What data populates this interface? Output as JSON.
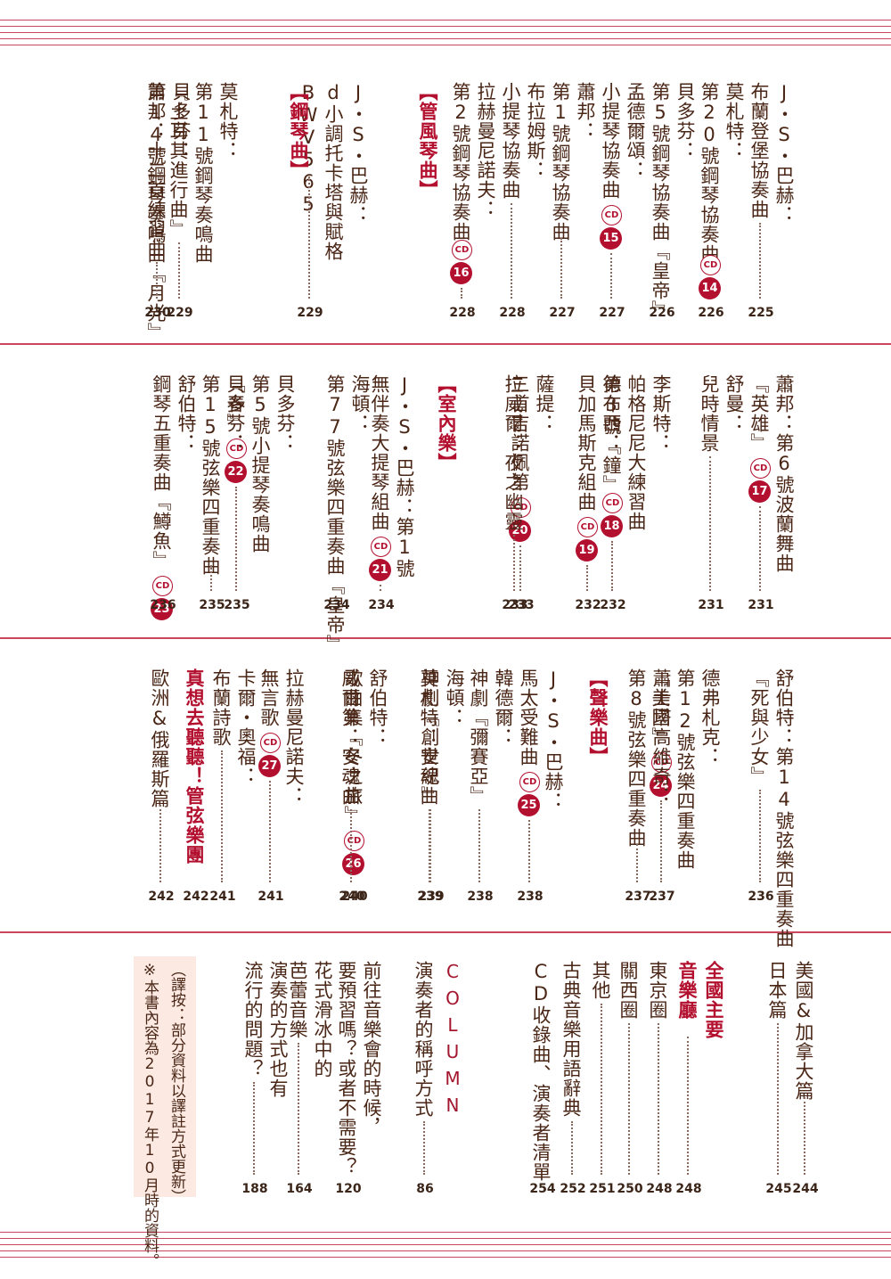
{
  "sections": [
    {
      "id": "s1",
      "columns": [
        {
          "lines": [
            "J・S・巴赫：",
            "布蘭登堡協奏曲"
          ],
          "page": "225"
        },
        {
          "lines": [
            "莫札特：",
            "第20號鋼琴協奏曲"
          ],
          "cd": "14",
          "page": "226"
        },
        {
          "lines": [
            "貝多芬：",
            "第5號鋼琴協奏曲『皇帝』"
          ],
          "page": "226"
        },
        {
          "lines": [
            "孟德爾頌：",
            "小提琴協奏曲"
          ],
          "cd": "15",
          "page": "227"
        },
        {
          "lines": [
            "蕭邦：",
            "第1號鋼琴協奏曲"
          ],
          "page": "227"
        },
        {
          "lines": [
            "布拉姆斯：",
            "小提琴協奏曲"
          ],
          "page": "228"
        },
        {
          "lines": [
            "拉赫曼尼諾夫：",
            "第2號鋼琴協奏曲"
          ],
          "cd": "16",
          "page": "228"
        },
        {
          "heading": "【管風琴曲】"
        },
        {
          "lines": [
            "J・S・巴赫：",
            "d小調托卡塔與賦格",
            "BWV565"
          ],
          "page": "229"
        },
        {
          "heading": "【鋼琴曲】"
        },
        {
          "lines": [
            "莫札特：",
            "第11號鋼琴奏鳴曲",
            "『土耳其進行曲』"
          ],
          "page": "229"
        },
        {
          "lines": [
            "貝多芬：",
            "第14號鋼琴奏鳴曲『月光』"
          ],
          "page": "230"
        },
        {
          "lines": [
            "蕭邦：十二首練習曲"
          ],
          "page": "230"
        }
      ]
    },
    {
      "id": "s2",
      "columns": [
        {
          "lines": [
            "蕭邦：第6號波蘭舞曲",
            "『英雄』"
          ],
          "cd": "17",
          "page": "231"
        },
        {
          "lines": [
            "舒曼：",
            "兒時情景"
          ],
          "page": "231"
        },
        {
          "lines": [
            "李斯特：",
            "帕格尼尼大練習曲",
            "第3號『鐘』"
          ],
          "cd": "18",
          "page": "232"
        },
        {
          "lines": [
            "德布西：",
            "貝加馬斯克組曲"
          ],
          "cd": "19",
          "page": "232"
        },
        {
          "lines": [
            "薩提：",
            "三首吉諾佩第"
          ],
          "cd": "20",
          "page": "233"
        },
        {
          "lines": [
            "拉威爾：夜之幽靈"
          ],
          "page": "233"
        },
        {
          "heading": "【室內樂】"
        },
        {
          "lines": [
            "J・S・巴赫：第1號",
            "無伴奏大提琴組曲"
          ],
          "cd": "21",
          "page": "234"
        },
        {
          "lines": [
            "海頓：",
            "第77號弦樂四重奏曲『皇帝』"
          ],
          "page": "234"
        },
        {
          "lines": [
            "貝多芬：",
            "第5號小提琴奏鳴曲",
            "『春』"
          ],
          "cd": "22",
          "page": "235"
        },
        {
          "lines": [
            "貝多芬：",
            "第15號弦樂四重奏曲"
          ],
          "page": "235"
        },
        {
          "lines": [
            "舒伯特：",
            "鋼琴五重奏曲『鱒魚』"
          ],
          "cd": "23",
          "page": "236"
        }
      ]
    },
    {
      "id": "s3",
      "columns": [
        {
          "lines": [
            "舒伯特：第14號弦樂四重奏曲",
            "『死與少女』"
          ],
          "page": "236"
        },
        {
          "lines": [
            "德弗札克：",
            "第12號弦樂四重奏曲",
            "『美國』"
          ],
          "cd": "24",
          "page": "237"
        },
        {
          "lines": [
            "蕭士塔高維奇：",
            "第8號弦樂四重奏曲"
          ],
          "page": "237"
        },
        {
          "heading": "【聲樂曲】"
        },
        {
          "lines": [
            "J・S・巴赫：",
            "馬太受難曲"
          ],
          "cd": "25",
          "page": "238"
        },
        {
          "lines": [
            "韓德爾：",
            "神劇『彌賽亞』"
          ],
          "page": "238"
        },
        {
          "lines": [
            "海頓：",
            "神劇『創世紀』"
          ],
          "page": "239"
        },
        {
          "lines": [
            "莫札特：安魂曲"
          ],
          "page": "239"
        },
        {
          "lines": [
            "舒伯特：",
            "歌曲集『冬之旅』"
          ],
          "cd": "26",
          "page": "240"
        },
        {
          "lines": [
            "威爾第：安魂曲"
          ],
          "page": "240"
        },
        {
          "lines": [
            "拉赫曼尼諾夫：",
            "無言歌"
          ],
          "cd": "27",
          "page": "241"
        },
        {
          "lines": [
            "卡爾・奧福：",
            "布蘭詩歌"
          ],
          "page": "241"
        },
        {
          "red": "真想去聽聽！管弦樂團",
          "page": "242"
        },
        {
          "lines": [
            "歐洲&俄羅斯篇"
          ],
          "page": "242"
        }
      ]
    },
    {
      "id": "s4",
      "columns": [
        {
          "lines": [
            "美國&加拿大篇"
          ],
          "page": "244"
        },
        {
          "lines": [
            "日本篇"
          ],
          "page": "245"
        },
        {
          "red": "全國主要"
        },
        {
          "red": "音樂廳",
          "page": "248"
        },
        {
          "lines": [
            "東京圈"
          ],
          "page": "248"
        },
        {
          "lines": [
            "關西圈"
          ],
          "page": "250"
        },
        {
          "lines": [
            "其他"
          ],
          "page": "251"
        },
        {
          "lines": [
            "古典音樂用語辭典"
          ],
          "page": "252"
        },
        {
          "lines": [
            "CD收錄曲、演奏者清單"
          ],
          "page": "254"
        },
        {
          "column_label": "COLUMN"
        },
        {
          "lines": [
            "演奏者的稱呼方式"
          ],
          "page": "86"
        },
        {
          "lines": [
            "前往音樂會的時候，",
            "要預習嗎？或者不需要？"
          ],
          "page": "120"
        },
        {
          "lines": [
            "花式滑冰中的",
            "芭蕾音樂"
          ],
          "page": "164"
        },
        {
          "lines": [
            "演奏的方式也有",
            "流行的問題？"
          ],
          "page": "188"
        }
      ],
      "note": {
        "lines": [
          "※本書內容為2017年10月時的資料。",
          "（譯按：部分資料以譯註方式更新）"
        ]
      }
    }
  ],
  "colors": {
    "accent": "#b3102f",
    "rule": "#c8475c",
    "text": "#4a2616",
    "note_bg": "#fbe9e2"
  }
}
